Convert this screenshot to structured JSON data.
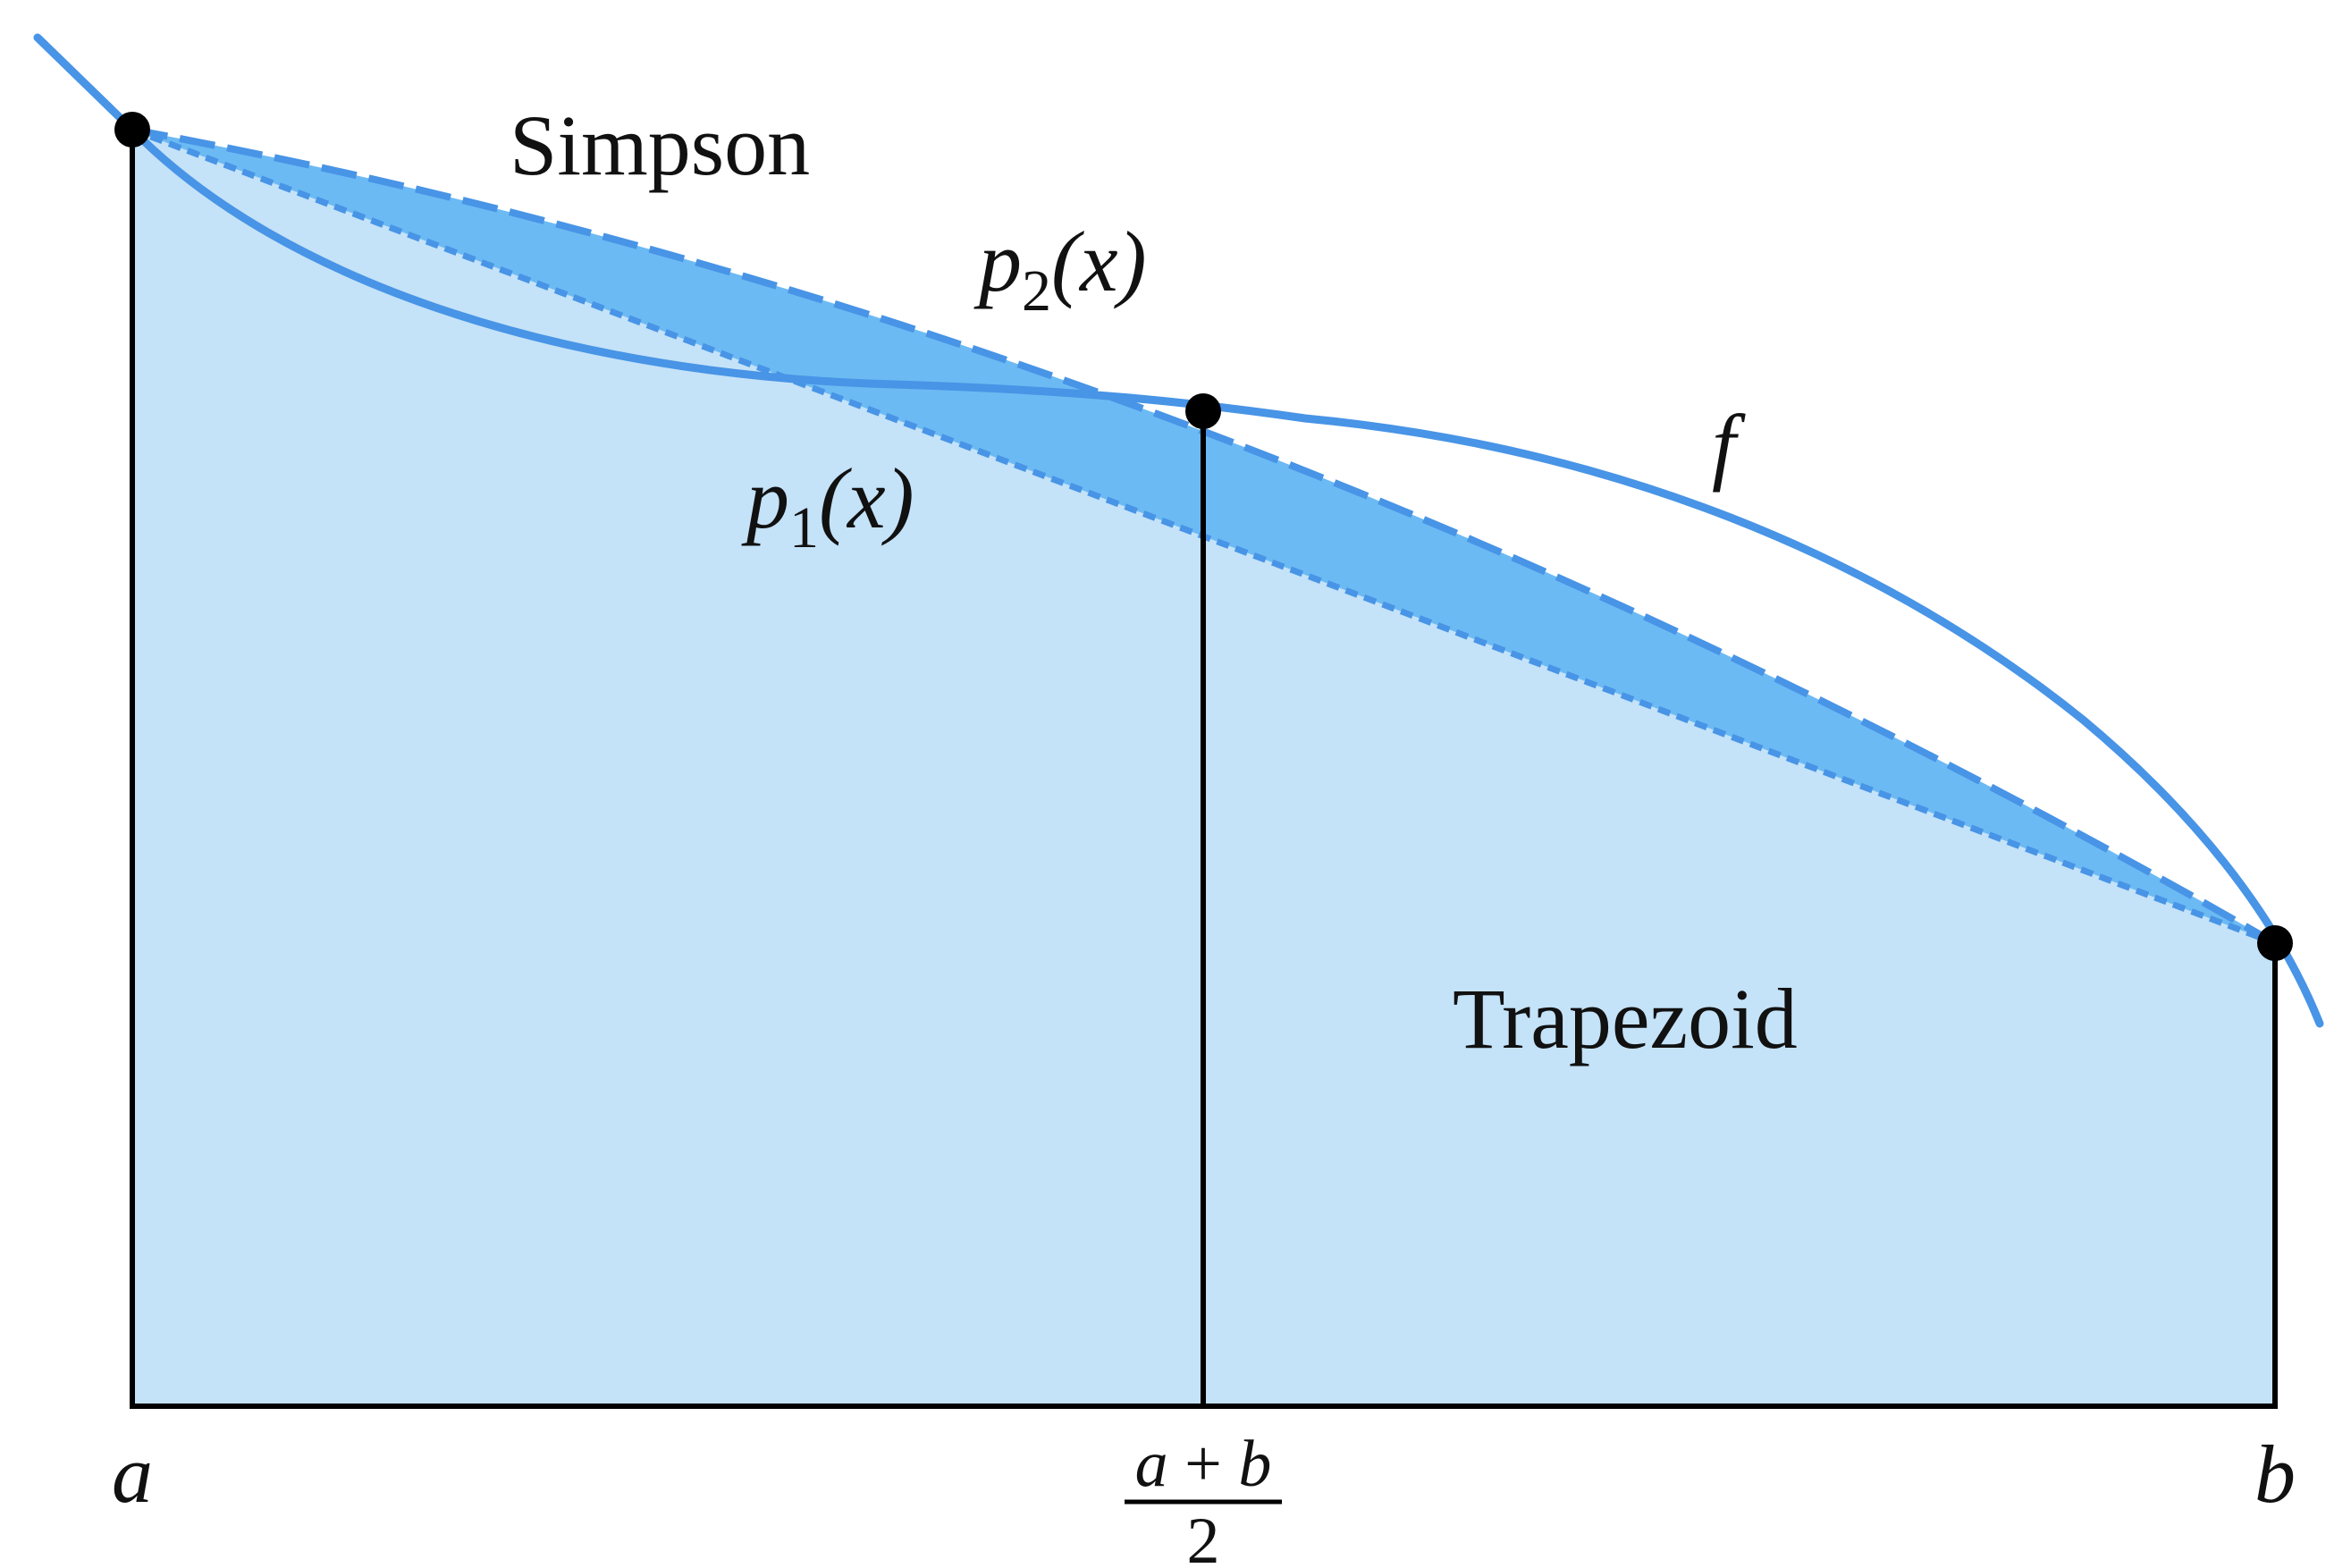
{
  "labels": {
    "simpson": "Simpson",
    "trapezoid": "Trapezoid",
    "p2": {
      "base": "p",
      "sub": "2",
      "arg": "(x)"
    },
    "p1": {
      "base": "p",
      "sub": "1",
      "arg": "(x)"
    },
    "f": "f"
  },
  "ticks": {
    "a": "a",
    "b": "b",
    "mid_num_a": "a",
    "mid_num_op": "+",
    "mid_num_b": "b",
    "mid_den": "2"
  },
  "colors": {
    "trapezoid_fill": "#c4e2f8",
    "simpson_fill": "#6cbaf3",
    "curve": "#4894e6",
    "axis": "#000000",
    "point": "#000000"
  }
}
